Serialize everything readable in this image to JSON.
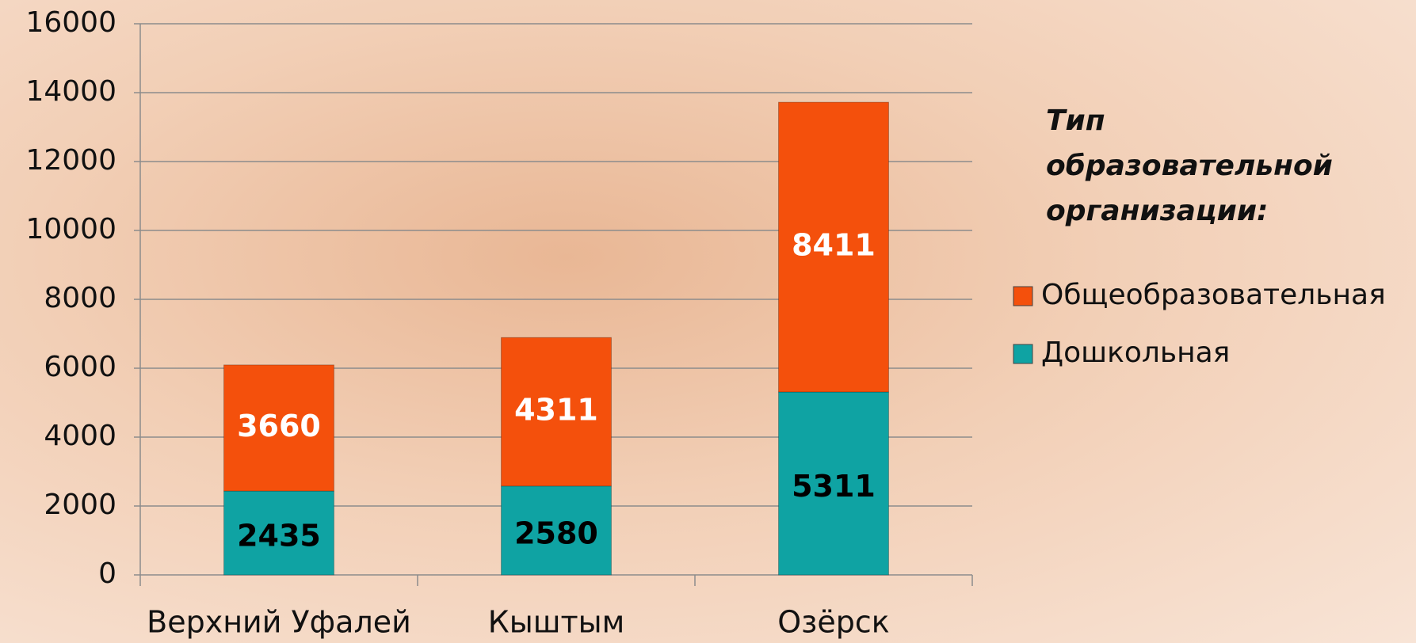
{
  "chart_data": {
    "type": "stacked_bar",
    "categories": [
      "Верхний Уфалей",
      "Кыштым",
      "Озёрск"
    ],
    "series": [
      {
        "name": "Дошкольная",
        "color": "#0fa3a3",
        "label_color": "#000000",
        "values": [
          2435,
          2580,
          5311
        ]
      },
      {
        "name": "Общеобразовательная",
        "color": "#f4500c",
        "label_color": "#ffffff",
        "values": [
          3660,
          4311,
          8411
        ]
      }
    ],
    "ylim": [
      0,
      16000
    ],
    "yticks": [
      0,
      2000,
      4000,
      6000,
      8000,
      10000,
      12000,
      14000,
      16000
    ],
    "grid": true,
    "legend_title": "Тип образовательной организации:",
    "legend_position": "right"
  }
}
